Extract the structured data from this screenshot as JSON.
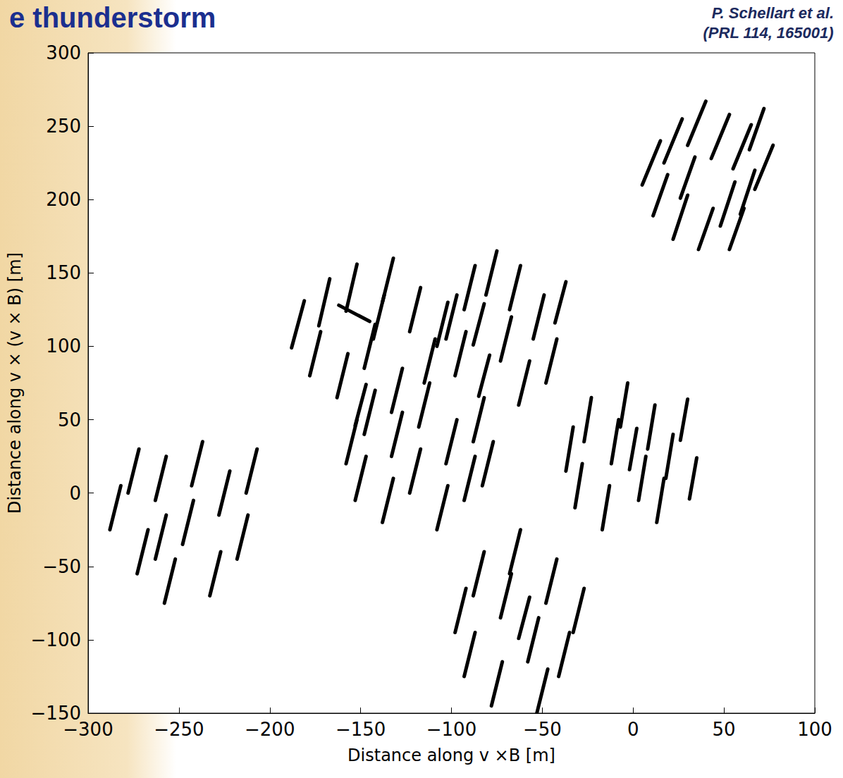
{
  "chart_data": {
    "type": "segments",
    "title": "e thunderstorm",
    "annotations": [
      "P. Schellart et al.",
      "(PRL 114, 165001)"
    ],
    "x_label": "Distance along v ×B [m]",
    "y_label": "Distance along v × (v × B) [m]",
    "xlim": [
      -300,
      100
    ],
    "xticks": [
      {
        "value": -300,
        "label": "−300"
      },
      {
        "value": -250,
        "label": "−250"
      },
      {
        "value": -200,
        "label": "−200"
      },
      {
        "value": -150,
        "label": "−150"
      },
      {
        "value": -100,
        "label": "−100"
      },
      {
        "value": -50,
        "label": "−50"
      },
      0,
      50,
      100
    ],
    "ylim": [
      -150,
      300
    ],
    "yticks": [
      {
        "value": -150,
        "label": "−150"
      },
      {
        "value": -100,
        "label": "−100"
      },
      {
        "value": -50,
        "label": "−50"
      },
      0,
      50,
      100,
      150,
      200,
      250,
      300
    ],
    "grid": false,
    "color": "#000000",
    "segments": [
      [
        5,
        210,
        15,
        240
      ],
      [
        11,
        189,
        19,
        217
      ],
      [
        17,
        225,
        27,
        255
      ],
      [
        22,
        173,
        30,
        203
      ],
      [
        30,
        237,
        40,
        267
      ],
      [
        36,
        166,
        44,
        194
      ],
      [
        43,
        228,
        53,
        258
      ],
      [
        48,
        182,
        56,
        212
      ],
      [
        55,
        221,
        65,
        251
      ],
      [
        59,
        190,
        67,
        220
      ],
      [
        67,
        207,
        77,
        237
      ],
      [
        26,
        201,
        34,
        229
      ],
      [
        53,
        166,
        61,
        194
      ],
      [
        64,
        234,
        72,
        262
      ],
      [
        -188,
        99,
        -181,
        131
      ],
      [
        -178,
        80,
        -172,
        110
      ],
      [
        -173,
        114,
        -167,
        146
      ],
      [
        -163,
        65,
        -157,
        95
      ],
      [
        -158,
        124,
        -152,
        156
      ],
      [
        -148,
        85,
        -142,
        115
      ],
      [
        -138,
        130,
        -132,
        160
      ],
      [
        -133,
        55,
        -127,
        85
      ],
      [
        -123,
        110,
        -117,
        140
      ],
      [
        -115,
        75,
        -109,
        105
      ],
      [
        -108,
        100,
        -102,
        130
      ],
      [
        -153,
        46,
        -147,
        74
      ],
      [
        -143,
        105,
        -137,
        135
      ],
      [
        -162,
        128,
        -145,
        117
      ],
      [
        -103,
        105,
        -97,
        135
      ],
      [
        -98,
        80,
        -92,
        110
      ],
      [
        -93,
        125,
        -87,
        155
      ],
      [
        -85,
        66,
        -79,
        94
      ],
      [
        -81,
        135,
        -75,
        165
      ],
      [
        -73,
        90,
        -67,
        120
      ],
      [
        -68,
        125,
        -62,
        155
      ],
      [
        -63,
        60,
        -57,
        90
      ],
      [
        -55,
        105,
        -49,
        135
      ],
      [
        -48,
        75,
        -42,
        105
      ],
      [
        -43,
        116,
        -37,
        144
      ],
      [
        -88,
        101,
        -82,
        129
      ],
      [
        -158,
        20,
        -152,
        50
      ],
      [
        -153,
        -5,
        -147,
        25
      ],
      [
        -148,
        40,
        -142,
        70
      ],
      [
        -138,
        -20,
        -132,
        10
      ],
      [
        -133,
        25,
        -127,
        55
      ],
      [
        -123,
        0,
        -117,
        30
      ],
      [
        -118,
        45,
        -112,
        75
      ],
      [
        -108,
        -25,
        -102,
        5
      ],
      [
        -103,
        20,
        -97,
        50
      ],
      [
        -93,
        -5,
        -87,
        25
      ],
      [
        -88,
        35,
        -82,
        65
      ],
      [
        -83,
        5,
        -77,
        35
      ],
      [
        -37,
        15,
        -33,
        45
      ],
      [
        -32,
        -10,
        -28,
        20
      ],
      [
        -27,
        35,
        -23,
        65
      ],
      [
        -17,
        -25,
        -13,
        5
      ],
      [
        -12,
        20,
        -8,
        50
      ],
      [
        -7,
        45,
        -3,
        75
      ],
      [
        3,
        -5,
        7,
        25
      ],
      [
        8,
        30,
        12,
        60
      ],
      [
        13,
        -20,
        17,
        10
      ],
      [
        18,
        10,
        22,
        40
      ],
      [
        26,
        36,
        30,
        64
      ],
      [
        31,
        -4,
        35,
        24
      ],
      [
        -2,
        16,
        2,
        44
      ],
      [
        -288,
        -25,
        -282,
        5
      ],
      [
        -278,
        0,
        -272,
        30
      ],
      [
        -273,
        -55,
        -267,
        -25
      ],
      [
        -263,
        -5,
        -257,
        25
      ],
      [
        -258,
        -75,
        -252,
        -45
      ],
      [
        -248,
        -35,
        -242,
        -5
      ],
      [
        -243,
        5,
        -237,
        35
      ],
      [
        -233,
        -70,
        -227,
        -40
      ],
      [
        -228,
        -15,
        -222,
        15
      ],
      [
        -218,
        -45,
        -212,
        -15
      ],
      [
        -213,
        0,
        -207,
        30
      ],
      [
        -263,
        -45,
        -257,
        -15
      ],
      [
        -98,
        -95,
        -92,
        -65
      ],
      [
        -93,
        -125,
        -87,
        -95
      ],
      [
        -88,
        -70,
        -82,
        -40
      ],
      [
        -78,
        -145,
        -72,
        -115
      ],
      [
        -73,
        -85,
        -67,
        -55
      ],
      [
        -68,
        -55,
        -62,
        -25
      ],
      [
        -58,
        -115,
        -52,
        -85
      ],
      [
        -53,
        -150,
        -47,
        -120
      ],
      [
        -48,
        -75,
        -42,
        -45
      ],
      [
        -41,
        -125,
        -35,
        -95
      ],
      [
        -33,
        -95,
        -27,
        -65
      ],
      [
        -63,
        -99,
        -57,
        -71
      ]
    ]
  }
}
